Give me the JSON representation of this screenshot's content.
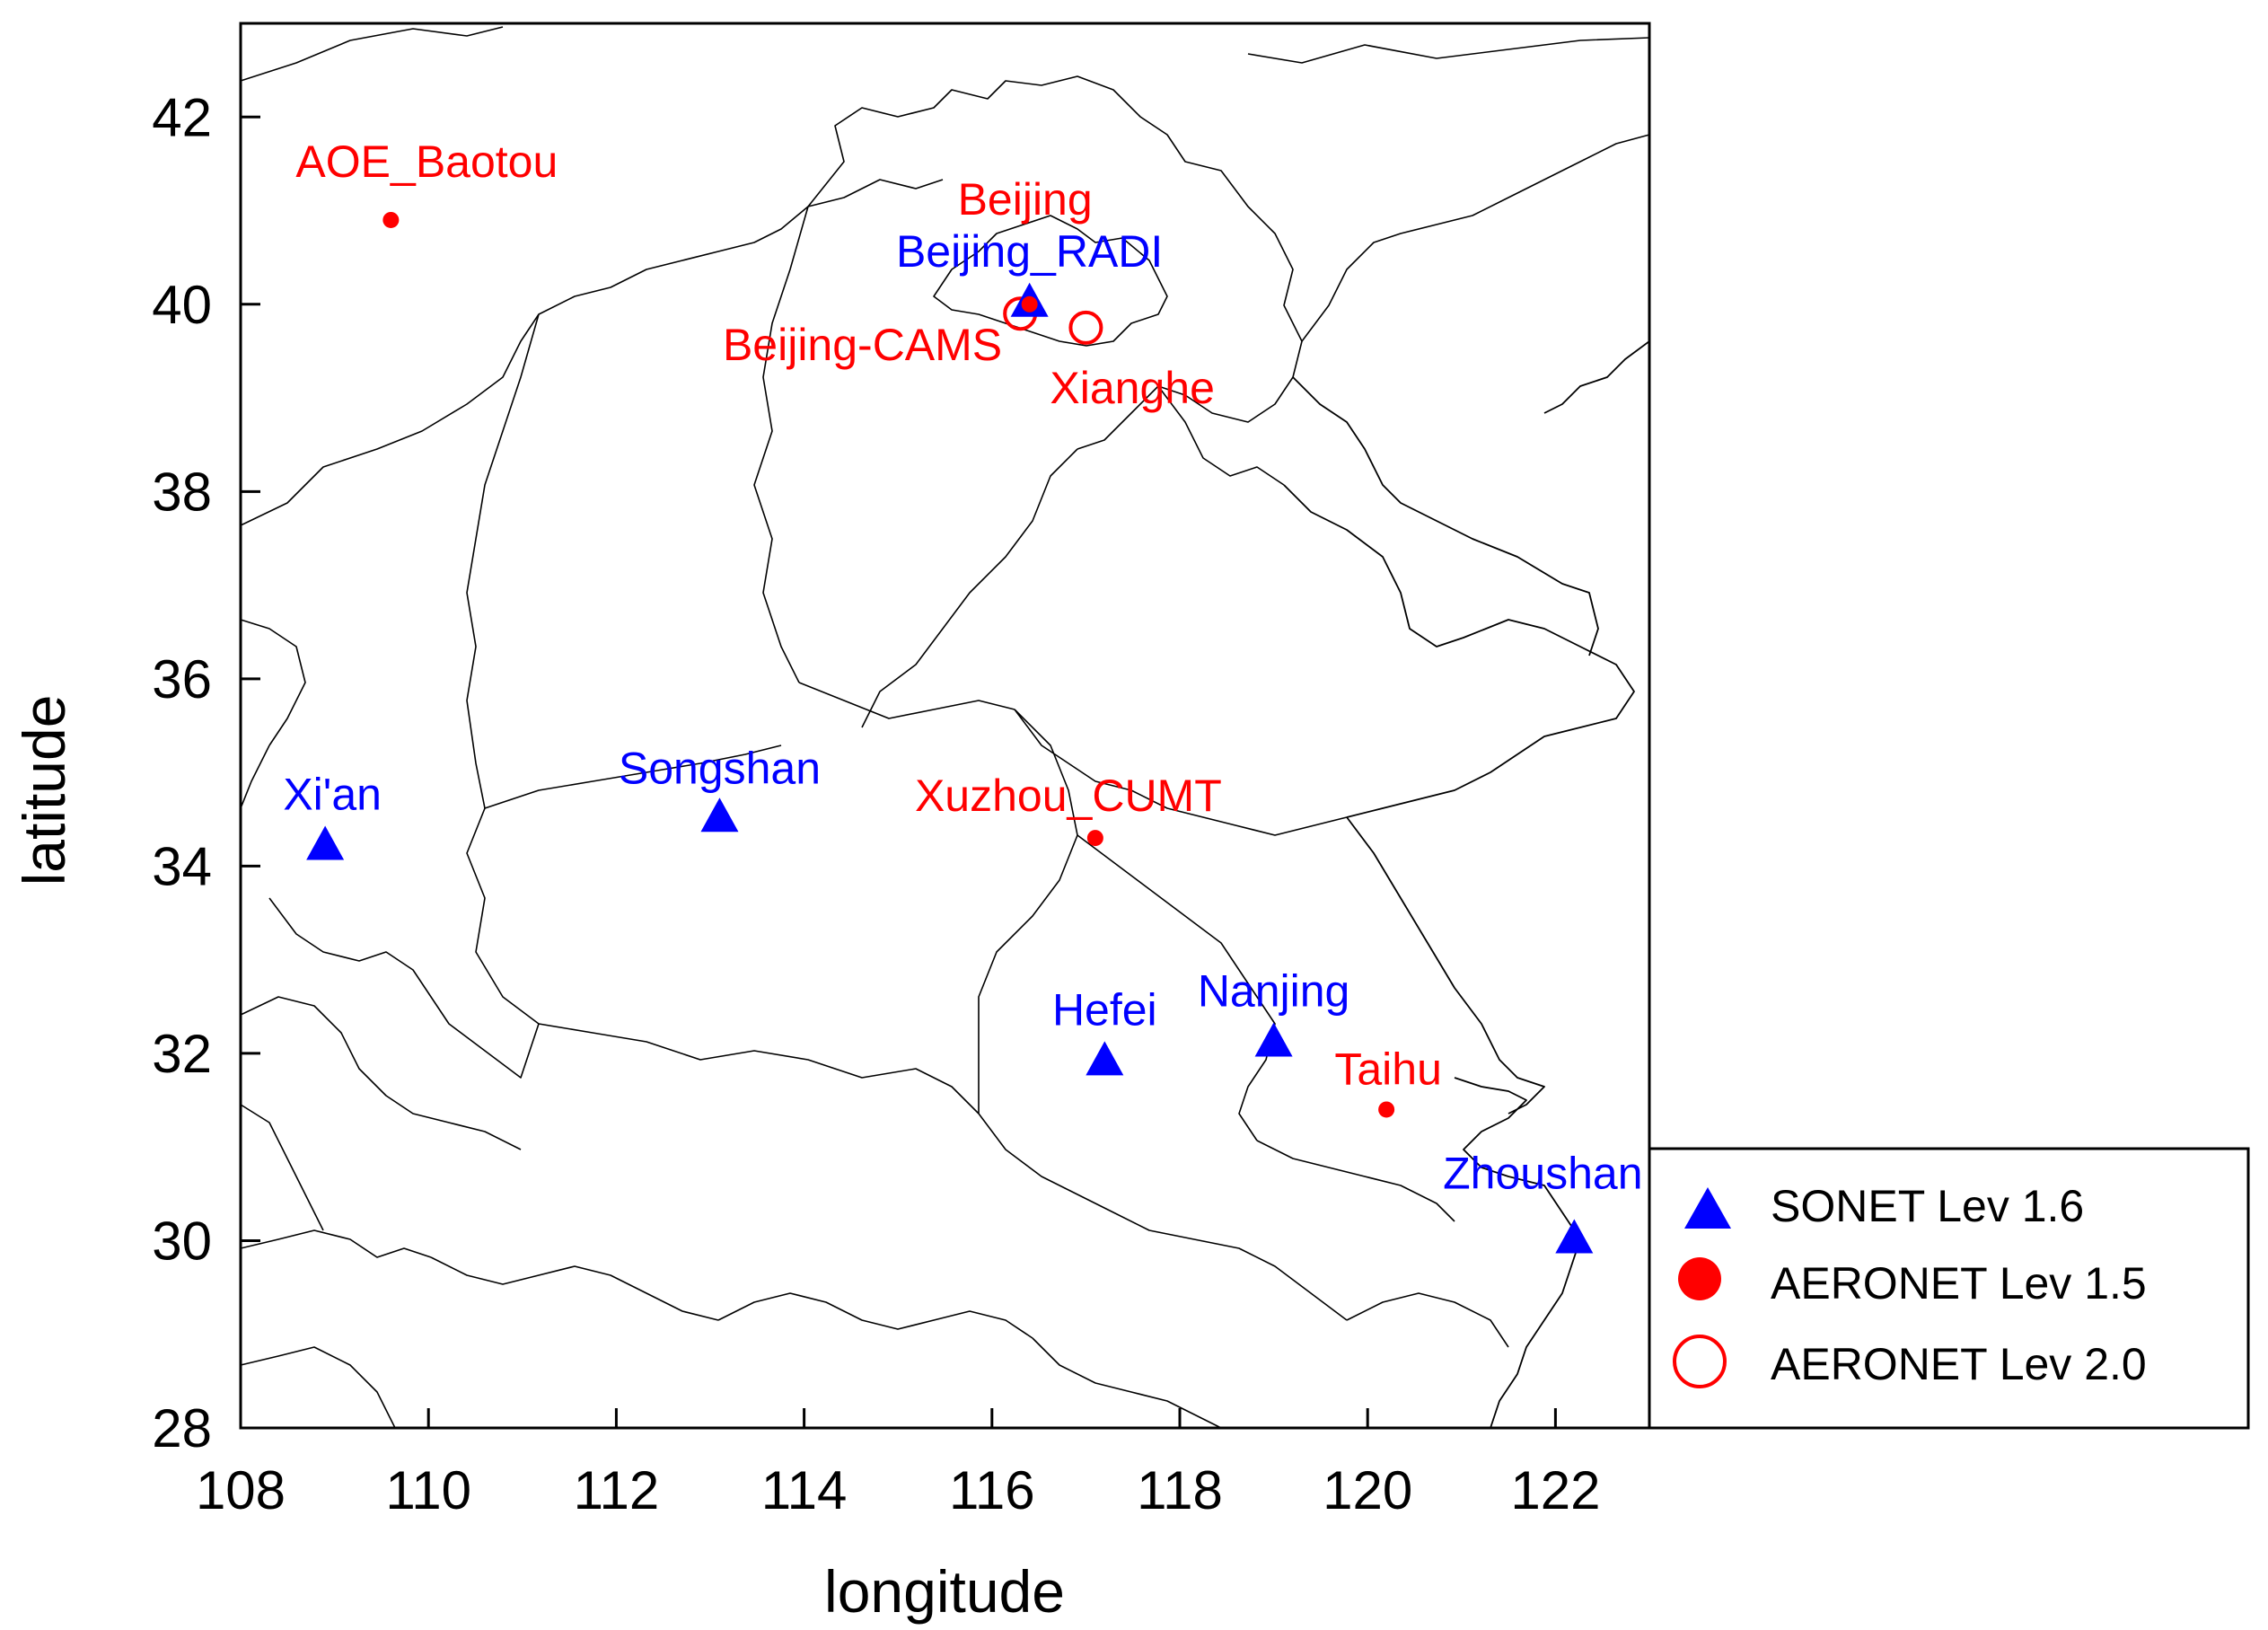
{
  "map": {
    "type": "scatter",
    "xlabel": "longitude",
    "ylabel": "latitude",
    "xlim": [
      108,
      123
    ],
    "ylim": [
      28,
      43
    ],
    "x_ticks": [
      108,
      110,
      112,
      114,
      116,
      118,
      120,
      122
    ],
    "y_ticks": [
      28,
      30,
      32,
      34,
      36,
      38,
      40,
      42
    ],
    "grid": false,
    "legend_position": "bottom-right, outside plot",
    "colors": {
      "sonet": "#0000ff",
      "aeronet": "#ff0000",
      "boundaries": "#000000"
    }
  },
  "legend": [
    {
      "marker": "triangle-filled",
      "color": "#0000ff",
      "label": "SONET Lev 1.6"
    },
    {
      "marker": "circle-filled",
      "color": "#ff0000",
      "label": "AERONET Lev 1.5"
    },
    {
      "marker": "circle-open",
      "color": "#ff0000",
      "label": "AERONET Lev 2.0"
    }
  ],
  "sites": [
    {
      "name": "AOE_Baotou",
      "lon": 109.6,
      "lat": 40.9,
      "network": "AERONET Lev 1.5"
    },
    {
      "name": "Beijing",
      "lon": 116.4,
      "lat": 40.0,
      "network": "AERONET Lev 1.5"
    },
    {
      "name": "Beijing_RADI",
      "lon": 116.4,
      "lat": 40.0,
      "network": "SONET Lev 1.6"
    },
    {
      "name": "Beijing-CAMS",
      "lon": 116.3,
      "lat": 39.9,
      "network": "AERONET Lev 2.0"
    },
    {
      "name": "Xianghe",
      "lon": 117.0,
      "lat": 39.75,
      "network": "AERONET Lev 2.0"
    },
    {
      "name": "Xi'an",
      "lon": 108.9,
      "lat": 34.2,
      "network": "SONET Lev 1.6"
    },
    {
      "name": "Songshan",
      "lon": 113.1,
      "lat": 34.5,
      "network": "SONET Lev 1.6"
    },
    {
      "name": "Xuzhou_CUMT",
      "lon": 117.1,
      "lat": 34.3,
      "network": "AERONET Lev 1.5"
    },
    {
      "name": "Hefei",
      "lon": 117.2,
      "lat": 31.9,
      "network": "SONET Lev 1.6"
    },
    {
      "name": "Nanjing",
      "lon": 119.0,
      "lat": 32.1,
      "network": "SONET Lev 1.6"
    },
    {
      "name": "Taihu",
      "lon": 120.2,
      "lat": 31.4,
      "network": "AERONET Lev 1.5"
    },
    {
      "name": "Zhoushan",
      "lon": 122.2,
      "lat": 30.0,
      "network": "SONET Lev 1.6"
    }
  ]
}
